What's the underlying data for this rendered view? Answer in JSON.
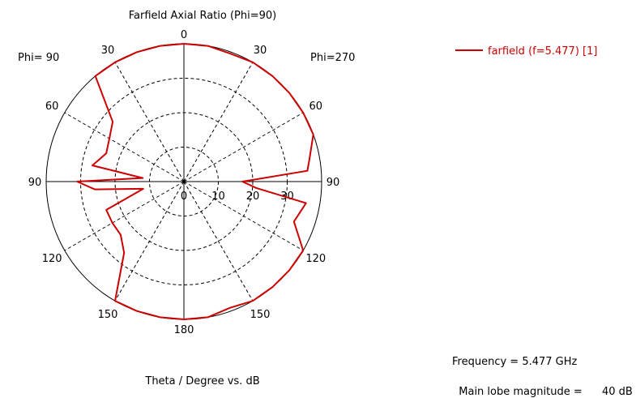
{
  "chart_data": {
    "type": "polar",
    "title": "Farfield  Axial Ratio (Phi=90)",
    "xlabel": "Theta / Degree vs. dB",
    "left_plane_label": "Phi= 90",
    "right_plane_label": "Phi=270",
    "angle_tick_labels": [
      "0",
      "30",
      "60",
      "90",
      "120",
      "150",
      "180",
      "150",
      "120",
      "90",
      "60",
      "30"
    ],
    "radial_tick_labels": [
      "0",
      "10",
      "20",
      "30"
    ],
    "radial_range": [
      0,
      40
    ],
    "grid": true,
    "legend_position": "top-right",
    "series": [
      {
        "name": "farfield (f=5.477) [1]",
        "color": "#cc0000",
        "theta_deg": [
          0,
          10,
          20,
          30,
          40,
          50,
          60,
          70,
          80,
          85,
          90,
          95,
          100,
          110,
          120,
          130,
          140,
          150,
          160,
          170,
          180,
          190,
          200,
          210,
          220,
          230,
          240,
          250,
          260,
          265,
          270,
          275,
          280,
          290,
          300,
          310,
          320,
          330,
          340,
          350,
          360
        ],
        "value_db": [
          40,
          40,
          39.5,
          40,
          40,
          40,
          40,
          40,
          37,
          36,
          17,
          21,
          36,
          34,
          40,
          40,
          40,
          40,
          39,
          40,
          40,
          40,
          40,
          40,
          27,
          24,
          24,
          24,
          12,
          26,
          31,
          12,
          27,
          24,
          25,
          27,
          40,
          40,
          40,
          40,
          40
        ]
      }
    ]
  },
  "info": {
    "frequency_label": "Frequency = 5.477 GHz",
    "magnitude_label": "Main lobe magnitude =",
    "magnitude_value": "40 dB"
  }
}
